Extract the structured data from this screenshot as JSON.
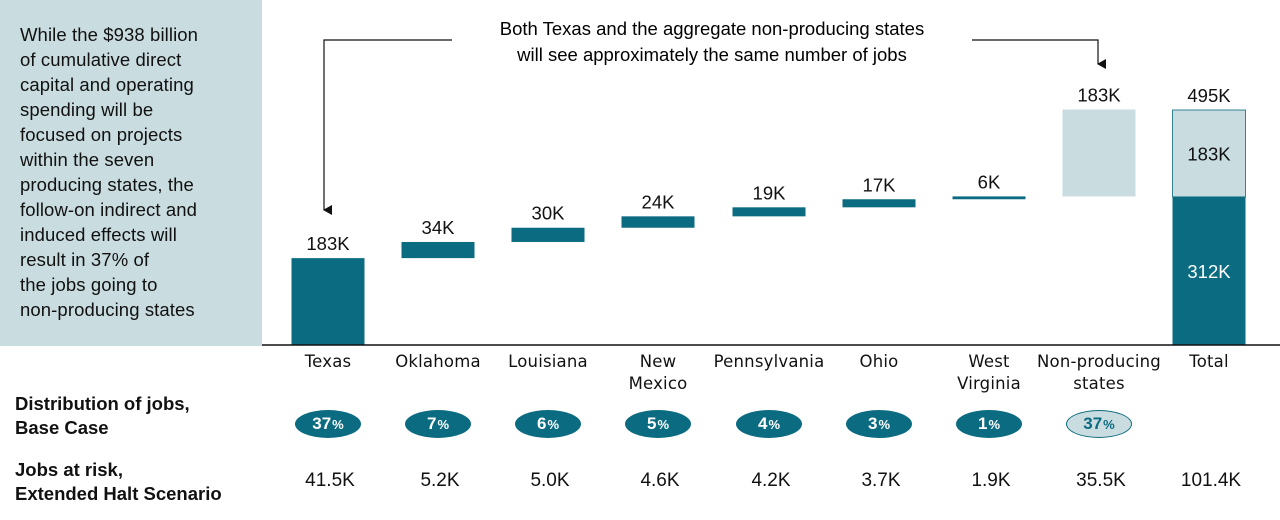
{
  "side_note": {
    "lines": [
      "While the $938 billion",
      "of cumulative direct",
      "capital and operating",
      "spending will be",
      "focused on projects",
      "within the seven",
      "producing states, the",
      "follow-on indirect and",
      "induced effects will",
      "result in 37% of",
      "the jobs going to",
      "non-producing states"
    ]
  },
  "annotation": {
    "line1": "Both Texas and the aggregate non-producing states",
    "line2": "will see approximately the same number of jobs"
  },
  "row_labels": {
    "distribution": [
      "Distribution of jobs,",
      "Base Case"
    ],
    "risk": [
      "Jobs at risk,",
      "Extended Halt Scenario"
    ]
  },
  "colors": {
    "primary": "#0b6b80",
    "light": "#c9dce0",
    "pill_light_text": "#0b6b80"
  },
  "chart_data": {
    "type": "waterfall",
    "unit": "K jobs",
    "ylim": [
      0,
      495
    ],
    "categories": [
      {
        "key": "texas",
        "label_lines": [
          "Texas"
        ],
        "value": 183,
        "label": "183K",
        "distribution": "37",
        "risk": "41.5K",
        "highlight": "primary"
      },
      {
        "key": "oklahoma",
        "label_lines": [
          "Oklahoma"
        ],
        "value": 34,
        "label": "34K",
        "distribution": "7",
        "risk": "5.2K",
        "highlight": "primary"
      },
      {
        "key": "louisiana",
        "label_lines": [
          "Louisiana"
        ],
        "value": 30,
        "label": "30K",
        "distribution": "6",
        "risk": "5.0K",
        "highlight": "primary"
      },
      {
        "key": "new-mexico",
        "label_lines": [
          "New",
          "Mexico"
        ],
        "value": 24,
        "label": "24K",
        "distribution": "5",
        "risk": "4.6K",
        "highlight": "primary"
      },
      {
        "key": "pennsylvania",
        "label_lines": [
          "Pennsylvania"
        ],
        "value": 19,
        "label": "19K",
        "distribution": "4",
        "risk": "4.2K",
        "highlight": "primary"
      },
      {
        "key": "ohio",
        "label_lines": [
          "Ohio"
        ],
        "value": 17,
        "label": "17K",
        "distribution": "3",
        "risk": "3.7K",
        "highlight": "primary"
      },
      {
        "key": "west-virginia",
        "label_lines": [
          "West",
          "Virginia"
        ],
        "value": 6,
        "label": "6K",
        "distribution": "1",
        "risk": "1.9K",
        "highlight": "primary"
      },
      {
        "key": "non-producing",
        "label_lines": [
          "Non-producing",
          "states"
        ],
        "value": 183,
        "label": "183K",
        "distribution": "37",
        "risk": "35.5K",
        "highlight": "light"
      }
    ],
    "total": {
      "key": "total",
      "label_lines": [
        "Total"
      ],
      "value": 495,
      "label": "495K",
      "risk": "101.4K",
      "segments": [
        {
          "value": 312,
          "label": "312K",
          "color": "primary"
        },
        {
          "value": 183,
          "label": "183K",
          "color": "light"
        }
      ]
    },
    "pct_symbol": "%"
  }
}
